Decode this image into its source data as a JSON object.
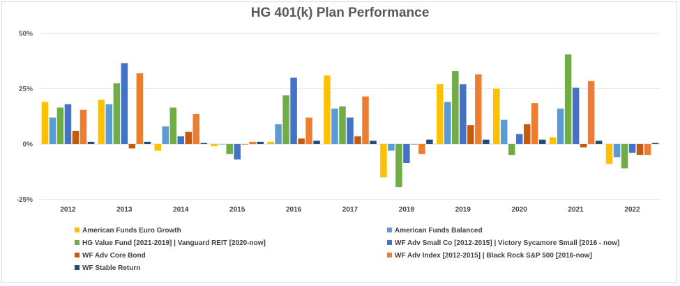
{
  "chart_data": {
    "type": "bar",
    "title": "HG 401(k) Plan Performance",
    "categories": [
      "2012",
      "2013",
      "2014",
      "2015",
      "2016",
      "2017",
      "2018",
      "2019",
      "2020",
      "2021",
      "2022"
    ],
    "y_ticks": [
      "50%",
      "25%",
      "0%",
      "-25%"
    ],
    "ylim": [
      -25,
      50
    ],
    "grid": true,
    "legend_position": "bottom",
    "series": [
      {
        "name": "American Funds Euro Growth",
        "color": "#ffc000",
        "values": [
          19,
          20,
          -3,
          -1,
          1,
          31,
          -15,
          27,
          25,
          3,
          -9
        ]
      },
      {
        "name": "American Funds Balanced",
        "color": "#5b9bd5",
        "values": [
          12,
          18,
          8,
          0,
          9,
          16,
          -3,
          19,
          11,
          16,
          -6
        ]
      },
      {
        "name": "HG Value Fund [2021-2019] | Vanguard REIT [2020-now]",
        "color": "#70ad47",
        "values": [
          16.5,
          27.5,
          16.5,
          -4.5,
          22,
          17,
          -19.5,
          33,
          -5,
          40.5,
          -11
        ]
      },
      {
        "name": "WF Adv Small Co [2012-2015] | Victory Sycamore Small [2016 - now]",
        "color": "#4472c4",
        "values": [
          18,
          36.5,
          3.5,
          -7,
          30,
          12,
          -8.5,
          27,
          4.5,
          25.5,
          -4
        ]
      },
      {
        "name": "WF Adv Core Bond",
        "color": "#c55a11",
        "values": [
          6,
          -2,
          5.5,
          0,
          2.5,
          3.5,
          0,
          8.5,
          9,
          -1.5,
          -5
        ]
      },
      {
        "name": "WF Adv Index [2012-2015] | Black Rock S&P 500 [2016-now]",
        "color": "#ed7d31",
        "values": [
          15.5,
          32,
          13.5,
          1,
          12,
          21.5,
          -4.5,
          31.5,
          18.5,
          28.5,
          -5
        ]
      },
      {
        "name": "WF Stable Return",
        "color": "#1f4e79",
        "values": [
          1,
          1,
          0.5,
          1,
          1.5,
          1.5,
          2,
          2,
          2,
          1.5,
          0.5
        ]
      }
    ]
  }
}
